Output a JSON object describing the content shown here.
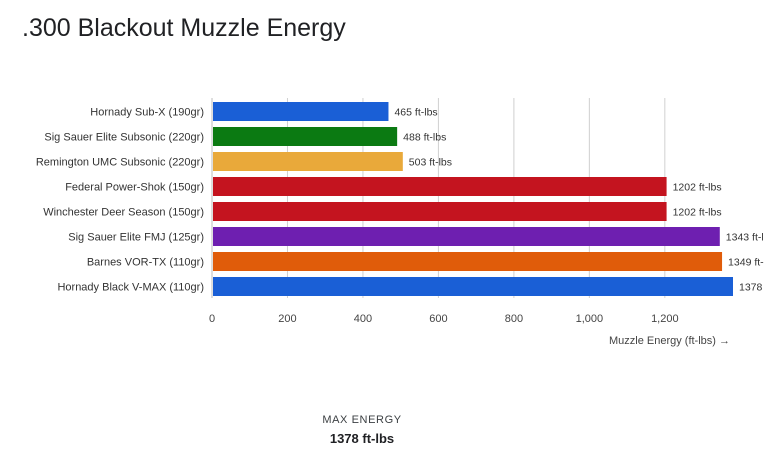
{
  "chart_data": {
    "type": "bar",
    "orientation": "horizontal",
    "title": ".300 Blackout Muzzle Energy",
    "xlabel": "Muzzle Energy (ft-lbs) →",
    "ylabel": "",
    "xlim": [
      0,
      1378
    ],
    "xticks": [
      "0",
      "200",
      "400",
      "600",
      "800",
      "1,000",
      "1,200"
    ],
    "xtick_values": [
      0,
      200,
      400,
      600,
      800,
      1000,
      1200
    ],
    "grid": true,
    "value_suffix": " ft-lbs",
    "categories": [
      "Hornady Sub-X (190gr)",
      "Sig Sauer Elite Subsonic (220gr)",
      "Remington UMC Subsonic (220gr)",
      "Federal Power-Shok (150gr)",
      "Winchester Deer Season (150gr)",
      "Sig Sauer Elite FMJ (125gr)",
      "Barnes VOR-TX (110gr)",
      "Hornady Black V-MAX (110gr)"
    ],
    "values": [
      465,
      488,
      503,
      1202,
      1202,
      1343,
      1349,
      1378
    ],
    "colors": [
      "#1a5fd6",
      "#0b7a12",
      "#e9a93a",
      "#c4141f",
      "#c4141f",
      "#6e1fb0",
      "#e05c0a",
      "#1a5fd6"
    ]
  },
  "summary": {
    "label": "MAX ENERGY",
    "value": "1378 ft-lbs"
  }
}
